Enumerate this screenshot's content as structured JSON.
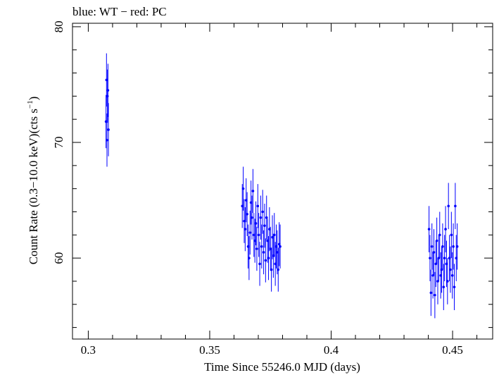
{
  "chart_data": {
    "type": "scatter",
    "title": "blue: WT − red: PC",
    "xlabel": "Time Since 55246.0 MJD (days)",
    "ylabel_main": "Count Rate (0.3−10.0 keV)(cts s",
    "ylabel_sup": "−1",
    "ylabel_close": ")",
    "xlim": [
      0.2935,
      0.4665
    ],
    "ylim": [
      53,
      80.3
    ],
    "xticks": [
      0.3,
      0.35,
      0.4,
      0.45
    ],
    "xtick_labels": [
      "0.3",
      "0.35",
      "0.4",
      "0.45"
    ],
    "yticks": [
      60,
      70,
      80
    ],
    "ytick_labels": [
      "60",
      "70",
      "80"
    ],
    "grid": false,
    "series": [
      {
        "name": "WT",
        "color": "#0000ff",
        "x": [
          0.3073,
          0.3075,
          0.3077,
          0.3079,
          0.3081,
          0.3083,
          0.3634,
          0.3638,
          0.3642,
          0.3646,
          0.365,
          0.3654,
          0.3658,
          0.3662,
          0.3666,
          0.367,
          0.3674,
          0.3678,
          0.3682,
          0.3686,
          0.369,
          0.3694,
          0.3698,
          0.3702,
          0.3706,
          0.371,
          0.3714,
          0.3718,
          0.3722,
          0.3726,
          0.373,
          0.3734,
          0.3738,
          0.3742,
          0.3746,
          0.375,
          0.3754,
          0.3758,
          0.3762,
          0.3766,
          0.377,
          0.3774,
          0.3778,
          0.3782,
          0.3786,
          0.379,
          0.4403,
          0.4407,
          0.4411,
          0.4415,
          0.4419,
          0.4423,
          0.4427,
          0.4431,
          0.4435,
          0.4439,
          0.4443,
          0.4447,
          0.4451,
          0.4455,
          0.4459,
          0.4463,
          0.4467,
          0.4471,
          0.4475,
          0.4479,
          0.4483,
          0.4487,
          0.4491,
          0.4495,
          0.4499,
          0.4503,
          0.4507,
          0.4511,
          0.4515,
          0.4519
        ],
        "y": [
          71.8,
          75.4,
          70.2,
          74.0,
          74.5,
          71.1,
          64.5,
          66.0,
          63.2,
          62.5,
          65.0,
          63.8,
          61.0,
          60.0,
          62.2,
          64.8,
          63.5,
          65.8,
          62.0,
          61.5,
          63.0,
          60.8,
          64.5,
          62.0,
          59.5,
          63.5,
          61.0,
          64.0,
          60.5,
          62.8,
          59.8,
          63.5,
          61.5,
          60.0,
          62.5,
          60.8,
          59.0,
          61.8,
          60.2,
          62.0,
          59.5,
          61.0,
          60.5,
          59.0,
          61.2,
          61.0,
          62.5,
          60.0,
          57.0,
          61.0,
          58.5,
          60.5,
          56.8,
          59.5,
          61.5,
          58.0,
          60.0,
          62.0,
          58.5,
          59.0,
          61.0,
          57.5,
          60.0,
          62.5,
          59.5,
          58.0,
          64.5,
          60.0,
          59.0,
          62.0,
          58.5,
          61.0,
          57.5,
          64.5,
          60.0,
          61.0
        ],
        "err": [
          2.3,
          2.3,
          2.3,
          2.3,
          2.3,
          2.3,
          1.9,
          1.9,
          1.9,
          1.9,
          1.9,
          1.9,
          1.9,
          1.9,
          1.9,
          1.9,
          1.9,
          1.9,
          1.9,
          1.9,
          1.9,
          1.9,
          1.9,
          1.9,
          1.9,
          1.9,
          1.9,
          1.9,
          1.9,
          1.9,
          1.9,
          1.9,
          1.9,
          1.9,
          1.9,
          1.9,
          1.9,
          1.9,
          1.9,
          1.9,
          1.9,
          1.9,
          1.9,
          1.9,
          1.9,
          1.9,
          2.0,
          2.0,
          2.0,
          2.0,
          2.0,
          2.0,
          2.0,
          2.0,
          2.0,
          2.0,
          2.0,
          2.0,
          2.0,
          2.0,
          2.0,
          2.0,
          2.0,
          2.0,
          2.0,
          2.0,
          2.0,
          2.0,
          2.0,
          2.0,
          2.0,
          2.0,
          2.0,
          2.0,
          2.0,
          2.0
        ]
      }
    ]
  }
}
